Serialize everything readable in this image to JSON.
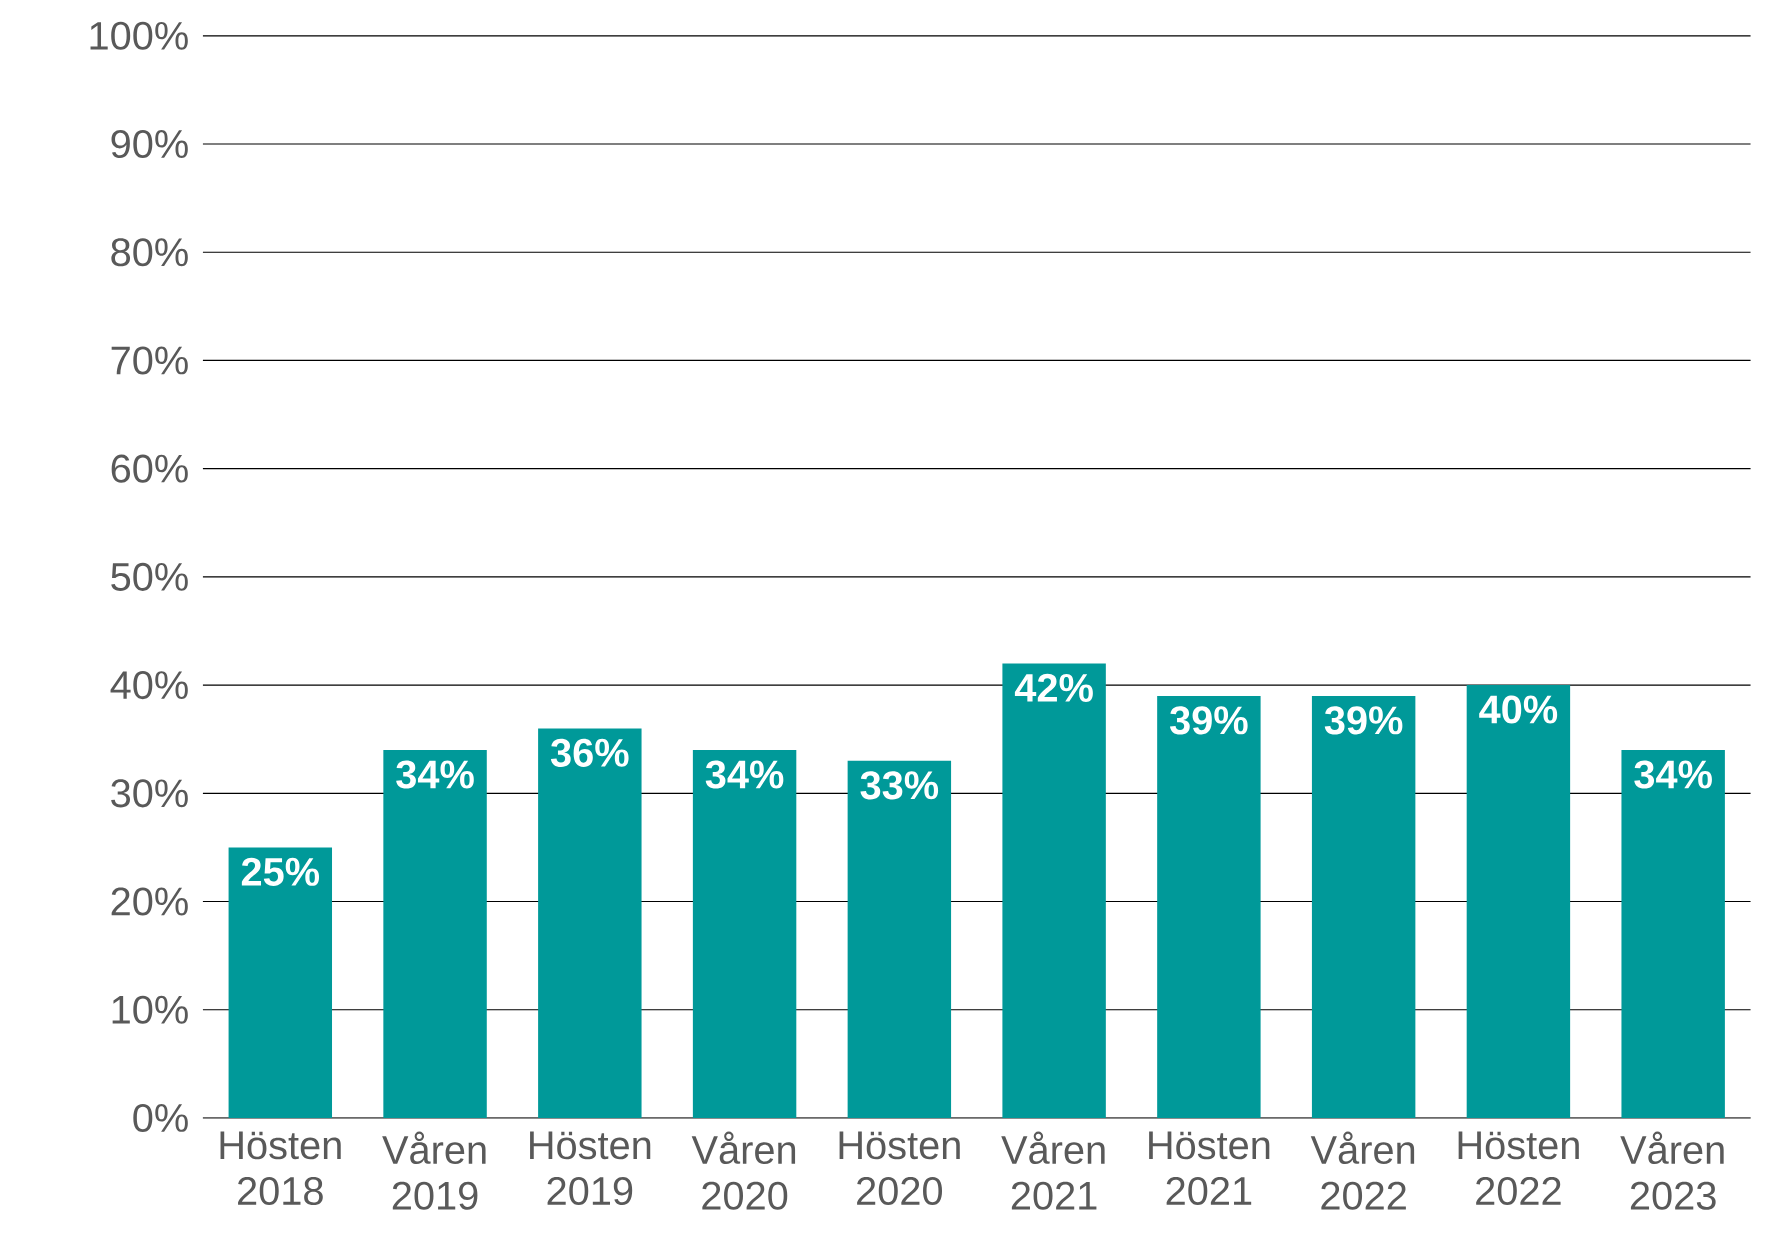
{
  "chart_data": {
    "type": "bar",
    "categories": [
      "Hösten 2018",
      "Våren 2019",
      "Hösten 2019",
      "Våren 2020",
      "Hösten 2020",
      "Våren 2021",
      "Hösten 2021",
      "Våren 2022",
      "Hösten 2022",
      "Våren 2023"
    ],
    "values": [
      25,
      34,
      36,
      34,
      33,
      42,
      39,
      39,
      40,
      34
    ],
    "value_labels": [
      "25%",
      "34%",
      "36%",
      "34%",
      "33%",
      "42%",
      "39%",
      "39%",
      "40%",
      "34%"
    ],
    "color": "#009999",
    "ylim": [
      0,
      100
    ],
    "yticks": [
      {
        "value": 0,
        "label": "0%"
      },
      {
        "value": 10,
        "label": "10%"
      },
      {
        "value": 20,
        "label": "20%"
      },
      {
        "value": 30,
        "label": "30%"
      },
      {
        "value": 40,
        "label": "40%"
      },
      {
        "value": 50,
        "label": "50%"
      },
      {
        "value": 60,
        "label": "60%"
      },
      {
        "value": 70,
        "label": "70%"
      },
      {
        "value": 80,
        "label": "80%"
      },
      {
        "value": 90,
        "label": "90%"
      },
      {
        "value": 100,
        "label": "100%"
      }
    ],
    "grid": "y"
  }
}
